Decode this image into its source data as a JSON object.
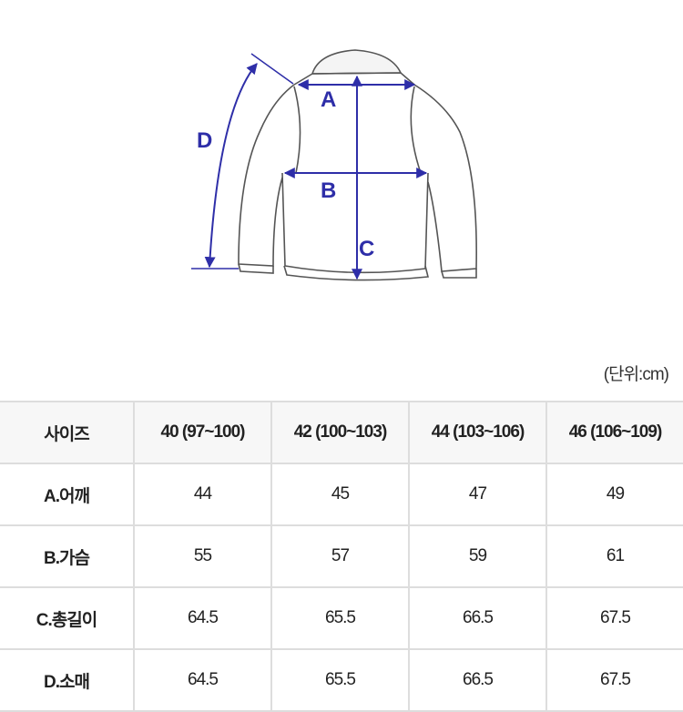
{
  "diagram": {
    "labels": {
      "a": "A",
      "b": "B",
      "c": "C",
      "d": "D"
    },
    "accent_color": "#2e2ea8"
  },
  "unit": "(단위:cm)",
  "table": {
    "header": [
      "사이즈",
      "40 (97~100)",
      "42 (100~103)",
      "44 (103~106)",
      "46 (106~109)"
    ],
    "rows": [
      {
        "label": "A.어깨",
        "values": [
          "44",
          "45",
          "47",
          "49"
        ]
      },
      {
        "label": "B.가슴",
        "values": [
          "55",
          "57",
          "59",
          "61"
        ]
      },
      {
        "label": "C.총길이",
        "values": [
          "64.5",
          "65.5",
          "66.5",
          "67.5"
        ]
      },
      {
        "label": "D.소매",
        "values": [
          "64.5",
          "65.5",
          "66.5",
          "67.5"
        ]
      }
    ]
  }
}
